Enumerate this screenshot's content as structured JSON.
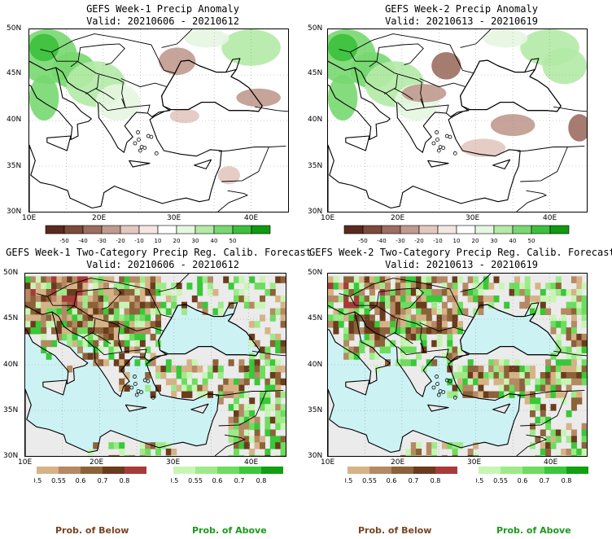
{
  "panels": [
    {
      "title": "GEFS Week-1 Precip Anomaly",
      "valid": "Valid: 20210606 - 20210612"
    },
    {
      "title": "GEFS Week-2 Precip Anomaly",
      "valid": "Valid: 20210613 - 20210619"
    },
    {
      "title": "GEFS Week-1 Two-Category Precip Reg. Calib. Forecast",
      "valid": "Valid: 20210606 - 20210612"
    },
    {
      "title": "GEFS Week-2 Two-Category Precip Reg. Calib. Forecast",
      "valid": "Valid: 20210613 - 20210619"
    }
  ],
  "axes": {
    "lat_labels": [
      "50N",
      "45N",
      "40N",
      "35N",
      "30N"
    ],
    "lon_labels": [
      "10E",
      "20E",
      "30E",
      "40E"
    ]
  },
  "anomaly_colorbar": {
    "labels": [
      "-50",
      "-40",
      "-30",
      "-20",
      "-10",
      "10",
      "20",
      "30",
      "40",
      "50"
    ],
    "colors": [
      "#5a2a1e",
      "#7a4a3a",
      "#9c6e60",
      "#c09a8e",
      "#e2c8c0",
      "#f4e6e2",
      "#ffffff",
      "#e6f6e0",
      "#b4eaa6",
      "#78d870",
      "#3cc03c",
      "#109a10"
    ]
  },
  "prob_colorbars": {
    "below": {
      "labels": [
        "0.5",
        "0.55",
        "0.6",
        "0.7",
        "0.8"
      ],
      "colors": [
        "#d6b386",
        "#b58963",
        "#8c6239",
        "#6a3c1d",
        "#a83a3a"
      ],
      "caption": "Prob. of Below",
      "caption_color": "#7a4320"
    },
    "above": {
      "labels": [
        "0.5",
        "0.55",
        "0.6",
        "0.7",
        "0.8"
      ],
      "colors": [
        "#c8f5b4",
        "#9eea8a",
        "#6edc5e",
        "#38c838",
        "#10a010"
      ],
      "caption": "Prob. of Above",
      "caption_color": "#1a9a1a"
    }
  },
  "map_colors": {
    "sea": "#ccf2f4",
    "no_data_land": "#ebebeb",
    "land": "#ffffff"
  }
}
